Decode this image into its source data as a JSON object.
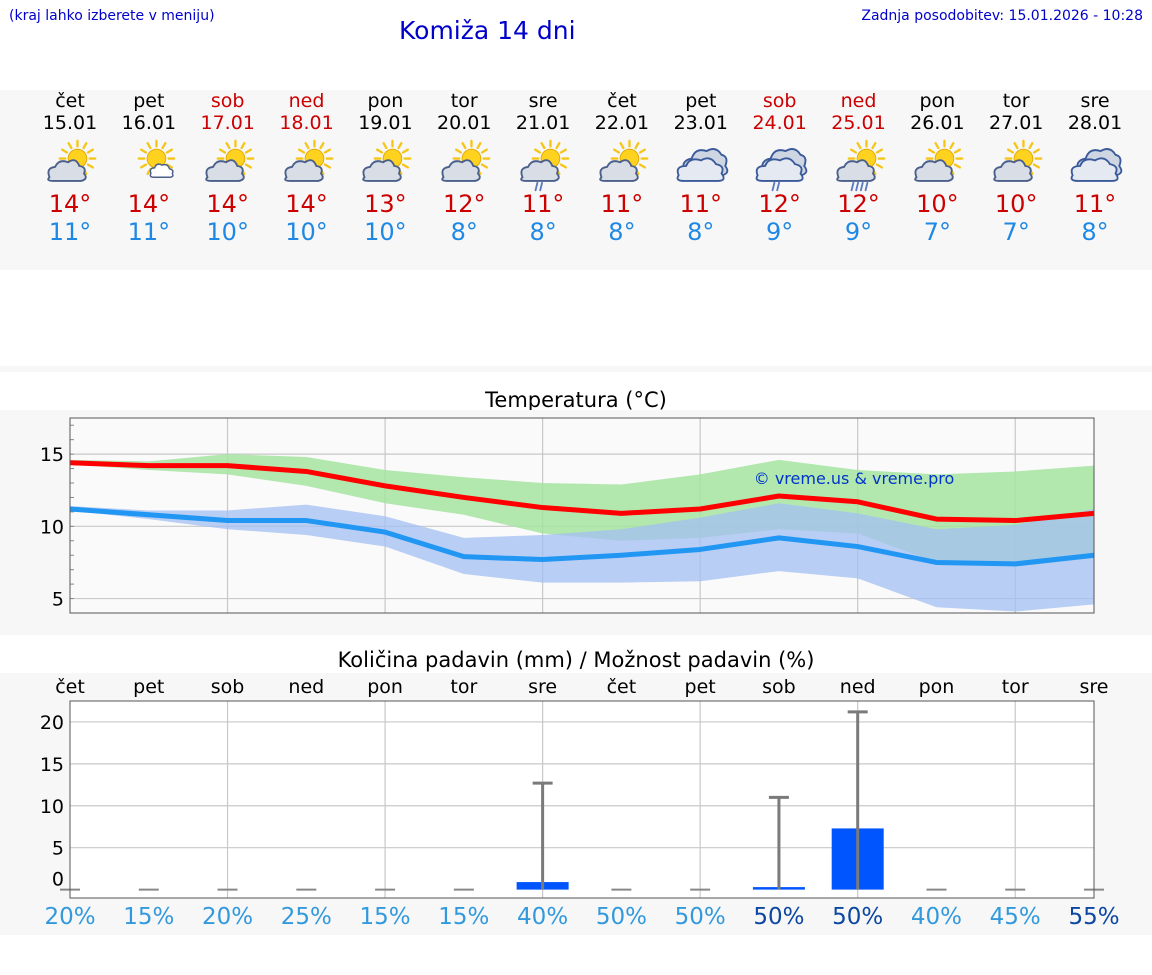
{
  "header": {
    "hint": "(kraj lahko izberete v meniju)",
    "title": "Komiža 14 dni",
    "updated": "Zadnja posodobitev: 15.01.2026 - 10:28"
  },
  "days": [
    {
      "name": "čet",
      "date": "15.01",
      "weekend": false,
      "icon": "sun-cloud-icon",
      "tmax": "14°",
      "tmin": "11°"
    },
    {
      "name": "pet",
      "date": "16.01",
      "weekend": false,
      "icon": "sun-small-cloud-icon",
      "tmax": "14°",
      "tmin": "11°"
    },
    {
      "name": "sob",
      "date": "17.01",
      "weekend": true,
      "icon": "sun-cloud-icon",
      "tmax": "14°",
      "tmin": "10°"
    },
    {
      "name": "ned",
      "date": "18.01",
      "weekend": true,
      "icon": "sun-cloud-icon",
      "tmax": "14°",
      "tmin": "10°"
    },
    {
      "name": "pon",
      "date": "19.01",
      "weekend": false,
      "icon": "sun-cloud-icon",
      "tmax": "13°",
      "tmin": "10°"
    },
    {
      "name": "tor",
      "date": "20.01",
      "weekend": false,
      "icon": "sun-cloud-icon",
      "tmax": "12°",
      "tmin": "8°"
    },
    {
      "name": "sre",
      "date": "21.01",
      "weekend": false,
      "icon": "sun-cloud-light-rain-icon",
      "tmax": "11°",
      "tmin": "8°"
    },
    {
      "name": "čet",
      "date": "22.01",
      "weekend": false,
      "icon": "sun-cloud-icon",
      "tmax": "11°",
      "tmin": "8°"
    },
    {
      "name": "pet",
      "date": "23.01",
      "weekend": false,
      "icon": "cloudy-icon",
      "tmax": "11°",
      "tmin": "8°"
    },
    {
      "name": "sob",
      "date": "24.01",
      "weekend": true,
      "icon": "cloud-rain-icon",
      "tmax": "12°",
      "tmin": "9°"
    },
    {
      "name": "ned",
      "date": "25.01",
      "weekend": true,
      "icon": "sun-cloud-heavy-rain-icon",
      "tmax": "12°",
      "tmin": "9°"
    },
    {
      "name": "pon",
      "date": "26.01",
      "weekend": false,
      "icon": "sun-cloud-icon",
      "tmax": "10°",
      "tmin": "7°"
    },
    {
      "name": "tor",
      "date": "27.01",
      "weekend": false,
      "icon": "sun-cloud-icon",
      "tmax": "10°",
      "tmin": "7°"
    },
    {
      "name": "sre",
      "date": "28.01",
      "weekend": false,
      "icon": "cloudy-icon",
      "tmax": "11°",
      "tmin": "8°"
    }
  ],
  "colors": {
    "title": "#0000cc",
    "weekend": "#cc0000",
    "tmax": "#cc0000",
    "tmin": "#1e88e5",
    "max_line": "#ff0000",
    "min_line": "#2196f3",
    "max_band": "#a5e4a0",
    "min_band": "#a3bff3",
    "precip_bar": "#0055ff",
    "pct_light": "#3399dd",
    "pct_dark": "#0d47a1"
  },
  "chart_data": [
    {
      "type": "line",
      "title": "Temperatura (°C)",
      "watermark": "© vreme.us & vreme.pro",
      "x": [
        0,
        1,
        2,
        3,
        4,
        5,
        6,
        7,
        8,
        9,
        10,
        11,
        12,
        13
      ],
      "ylim": [
        4,
        17.5
      ],
      "yticks": [
        "5",
        "10",
        "15"
      ],
      "series": [
        {
          "name": "max",
          "values": [
            14.4,
            14.2,
            14.2,
            13.8,
            12.8,
            12.0,
            11.3,
            10.9,
            11.2,
            12.1,
            11.7,
            10.5,
            10.4,
            10.9
          ]
        },
        {
          "name": "min",
          "values": [
            11.2,
            10.8,
            10.4,
            10.4,
            9.6,
            7.9,
            7.7,
            8.0,
            8.4,
            9.2,
            8.6,
            7.5,
            7.4,
            8.0
          ]
        },
        {
          "name": "max_band_upper",
          "values": [
            14.6,
            14.5,
            15.0,
            14.8,
            13.9,
            13.4,
            13.0,
            12.9,
            13.6,
            14.6,
            13.9,
            13.6,
            13.8,
            14.2
          ]
        },
        {
          "name": "max_band_lower",
          "values": [
            14.3,
            13.9,
            13.6,
            12.8,
            11.6,
            10.8,
            9.5,
            9.0,
            9.2,
            9.8,
            9.5,
            7.5,
            7.2,
            7.8
          ]
        },
        {
          "name": "min_band_upper",
          "values": [
            11.4,
            11.1,
            11.1,
            11.5,
            10.7,
            9.2,
            9.4,
            9.8,
            10.6,
            11.6,
            10.9,
            9.8,
            10.1,
            11.2
          ]
        },
        {
          "name": "min_band_lower",
          "values": [
            11.1,
            10.5,
            9.8,
            9.4,
            8.6,
            6.7,
            6.1,
            6.1,
            6.2,
            6.9,
            6.4,
            4.4,
            4.1,
            4.6
          ]
        }
      ]
    },
    {
      "type": "bar",
      "title": "Količina padavin (mm) / Možnost padavin (%)",
      "categories": [
        "čet",
        "pet",
        "sob",
        "ned",
        "pon",
        "tor",
        "sre",
        "čet",
        "pet",
        "sob",
        "ned",
        "pon",
        "tor",
        "sre"
      ],
      "ylim": [
        -1,
        22.5
      ],
      "yticks": [
        "0",
        "5",
        "10",
        "15",
        "20"
      ],
      "values": [
        0,
        0,
        0,
        0,
        0,
        0,
        0.9,
        0,
        0,
        0.3,
        7.3,
        0,
        0,
        0
      ],
      "error_max": [
        0,
        0,
        0,
        0,
        0,
        0,
        12.7,
        0,
        0,
        11.0,
        21.2,
        0,
        0,
        0
      ],
      "probability": [
        "20%",
        "15%",
        "20%",
        "25%",
        "15%",
        "15%",
        "40%",
        "50%",
        "50%",
        "50%",
        "50%",
        "40%",
        "45%",
        "55%"
      ],
      "probability_emphasis": [
        false,
        false,
        false,
        false,
        false,
        false,
        false,
        false,
        false,
        true,
        true,
        false,
        false,
        true
      ]
    }
  ]
}
